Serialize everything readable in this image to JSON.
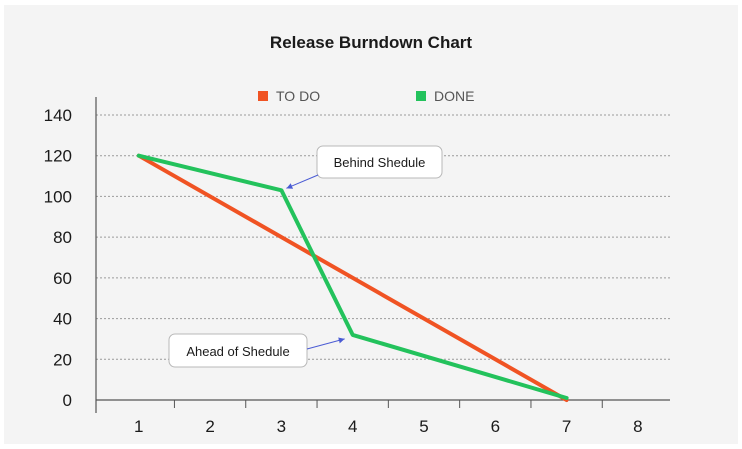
{
  "chart_data": {
    "type": "line",
    "title": "Release Burndown Chart",
    "xlabel": "",
    "ylabel": "",
    "x": [
      1,
      2,
      3,
      4,
      5,
      6,
      7,
      8
    ],
    "xlim": [
      0.4,
      8.45
    ],
    "ylim": [
      0,
      140
    ],
    "yticks": [
      0,
      20,
      40,
      60,
      80,
      100,
      120,
      140
    ],
    "grid": true,
    "legend_position": "top",
    "series": [
      {
        "name": "TO DO",
        "color": "#f05323",
        "points": [
          [
            1,
            120
          ],
          [
            7,
            0
          ]
        ]
      },
      {
        "name": "DONE",
        "color": "#23c25c",
        "points": [
          [
            1,
            120
          ],
          [
            3,
            103
          ],
          [
            4,
            32
          ],
          [
            7,
            1
          ]
        ]
      }
    ],
    "annotations": [
      {
        "text": "Behind Shedule",
        "x": 3,
        "y": 103
      },
      {
        "text": "Ahead of Shedule",
        "x": 4,
        "y": 32
      }
    ]
  }
}
